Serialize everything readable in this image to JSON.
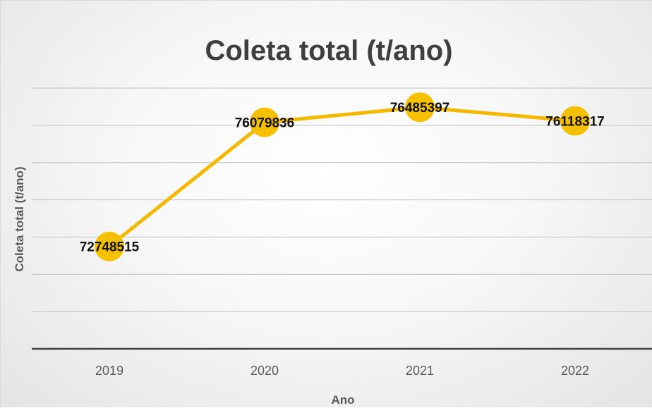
{
  "chart_data": {
    "type": "line",
    "title": "Coleta total (t/ano)",
    "xlabel": "Ano",
    "ylabel": "Coleta total (t/ano)",
    "categories": [
      "2019",
      "2020",
      "2021",
      "2022"
    ],
    "series": [
      {
        "values": [
          72748515,
          76079836,
          76485397,
          76118317
        ],
        "color": "#f5b800"
      }
    ],
    "data_labels": [
      "72748515",
      "76079836",
      "76485397",
      "76118317"
    ],
    "ylim": [
      70000000,
      77000000
    ],
    "gridlines": [
      71000000,
      72000000,
      73000000,
      74000000,
      75000000,
      76000000,
      77000000
    ],
    "grid": true,
    "y_tick_labels_visible": false,
    "legend": "none",
    "marker_color": "#f5c000",
    "line_color": "#f5b800"
  }
}
